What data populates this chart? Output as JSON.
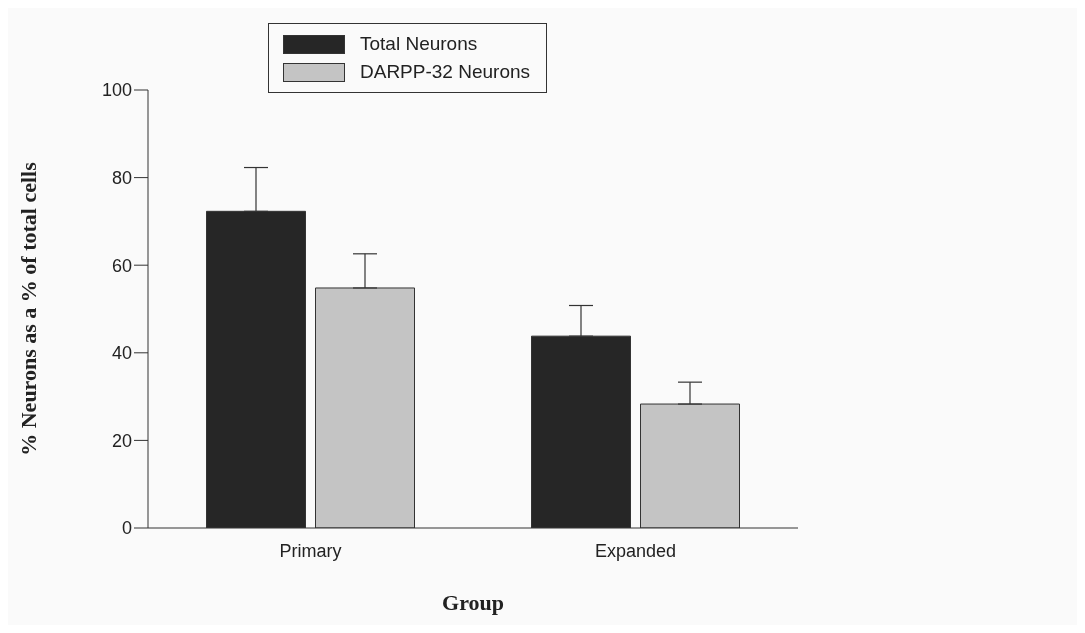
{
  "chart_data": {
    "type": "bar",
    "xlabel": "Group",
    "ylabel": "% Neurons as a % of total cells",
    "categories": [
      "Primary",
      "Expanded"
    ],
    "series": [
      {
        "name": "Total Neurons",
        "color": "#262626",
        "values": [
          72.3,
          43.8
        ],
        "errors": [
          [
            72.3,
            82.3
          ],
          [
            43.8,
            50.8
          ]
        ]
      },
      {
        "name": "DARPP-32 Neurons",
        "color": "#c4c4c4",
        "values": [
          54.8,
          28.3
        ],
        "errors": [
          [
            54.8,
            62.6
          ],
          [
            28.3,
            33.3
          ]
        ]
      }
    ],
    "ylim": [
      0,
      100
    ],
    "yticks": [
      0,
      20,
      40,
      60,
      80,
      100
    ],
    "grid": false,
    "legend": "top"
  }
}
